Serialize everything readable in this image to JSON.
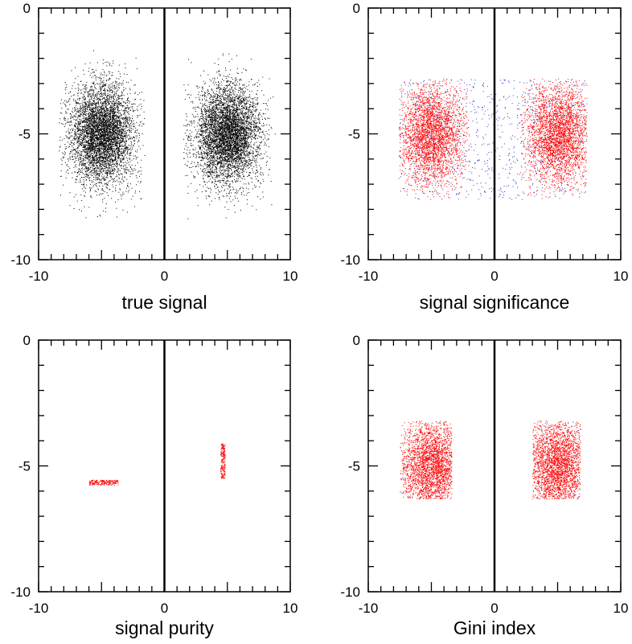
{
  "figure": {
    "background": "#ffffff",
    "axis_color": "#000000"
  },
  "chart_data": [
    {
      "type": "scatter",
      "title": "true signal",
      "xlim": [
        -10,
        10
      ],
      "ylim": [
        -10,
        0
      ],
      "xticks": [
        "-10",
        "0",
        "10"
      ],
      "yticks": [
        "0",
        "-5",
        "-10"
      ],
      "grid": false,
      "reference_line_x": 0,
      "series": [
        {
          "color": "#000000",
          "points": 10000,
          "clusters": [
            {
              "x_mean": -5,
              "x_sd": 1.3,
              "y_mean": -5,
              "y_sd": 1.0,
              "x_range": [
                -8.4,
                -1.5
              ],
              "y_range": [
                -8.5,
                -1.6
              ]
            },
            {
              "x_mean": 5,
              "x_sd": 1.3,
              "y_mean": -5,
              "y_sd": 1.0,
              "x_range": [
                1.5,
                8.8
              ],
              "y_range": [
                -8.5,
                -1.7
              ]
            }
          ]
        }
      ]
    },
    {
      "type": "scatter",
      "title": "signal significance",
      "xlim": [
        -10,
        10
      ],
      "ylim": [
        -10,
        0
      ],
      "xticks": [
        "-10",
        "0",
        "10"
      ],
      "yticks": [
        "0",
        "-5",
        "-10"
      ],
      "grid": false,
      "reference_line_x": 0,
      "series": [
        {
          "color": "#3333cc",
          "points": 900,
          "clusters": [
            {
              "uniform": true,
              "x_range": [
                -7.6,
                7.3
              ],
              "y_range": [
                -7.6,
                -2.8
              ]
            }
          ]
        },
        {
          "color": "#ff0000",
          "points": 6000,
          "clusters": [
            {
              "x_mean": -5,
              "x_sd": 1.3,
              "y_mean": -5,
              "y_sd": 1.0,
              "x_range": [
                -7.6,
                -2.0
              ],
              "y_range": [
                -7.6,
                -2.8
              ]
            },
            {
              "x_mean": 5,
              "x_sd": 1.3,
              "y_mean": -5,
              "y_sd": 1.0,
              "x_range": [
                2.0,
                7.3
              ],
              "y_range": [
                -7.6,
                -2.8
              ]
            }
          ]
        }
      ]
    },
    {
      "type": "scatter",
      "title": "signal purity",
      "xlim": [
        -10,
        10
      ],
      "ylim": [
        -10,
        0
      ],
      "xticks": [
        "-10",
        "0",
        "10"
      ],
      "yticks": [
        "0",
        "-5",
        "-10"
      ],
      "grid": false,
      "reference_line_x": 0,
      "series": [
        {
          "color": "#ff0000",
          "points": 400,
          "clusters": [
            {
              "uniform": true,
              "x_range": [
                -6.0,
                -3.7
              ],
              "y_range": [
                -5.75,
                -5.55
              ]
            },
            {
              "uniform": true,
              "x_range": [
                4.45,
                4.8
              ],
              "y_range": [
                -5.5,
                -4.1
              ]
            }
          ]
        }
      ]
    },
    {
      "type": "scatter",
      "title": "Gini index",
      "xlim": [
        -10,
        10
      ],
      "ylim": [
        -10,
        0
      ],
      "xticks": [
        "-10",
        "0",
        "10"
      ],
      "yticks": [
        "0",
        "-5",
        "-10"
      ],
      "grid": false,
      "reference_line_x": 0,
      "series": [
        {
          "color": "#3333cc",
          "points": 80,
          "clusters": [
            {
              "uniform": true,
              "x_range": [
                -7.5,
                -3.4
              ],
              "y_range": [
                -6.3,
                -3.2
              ]
            },
            {
              "uniform": true,
              "x_range": [
                3.0,
                6.8
              ],
              "y_range": [
                -6.3,
                -3.2
              ]
            }
          ]
        },
        {
          "color": "#ff0000",
          "points": 5000,
          "clusters": [
            {
              "x_mean": -5,
              "x_sd": 1.3,
              "y_mean": -5,
              "y_sd": 1.0,
              "x_range": [
                -7.5,
                -3.4
              ],
              "y_range": [
                -6.3,
                -3.2
              ]
            },
            {
              "x_mean": 5,
              "x_sd": 1.3,
              "y_mean": -5,
              "y_sd": 1.0,
              "x_range": [
                3.0,
                6.8
              ],
              "y_range": [
                -6.3,
                -3.2
              ]
            }
          ]
        }
      ]
    }
  ]
}
